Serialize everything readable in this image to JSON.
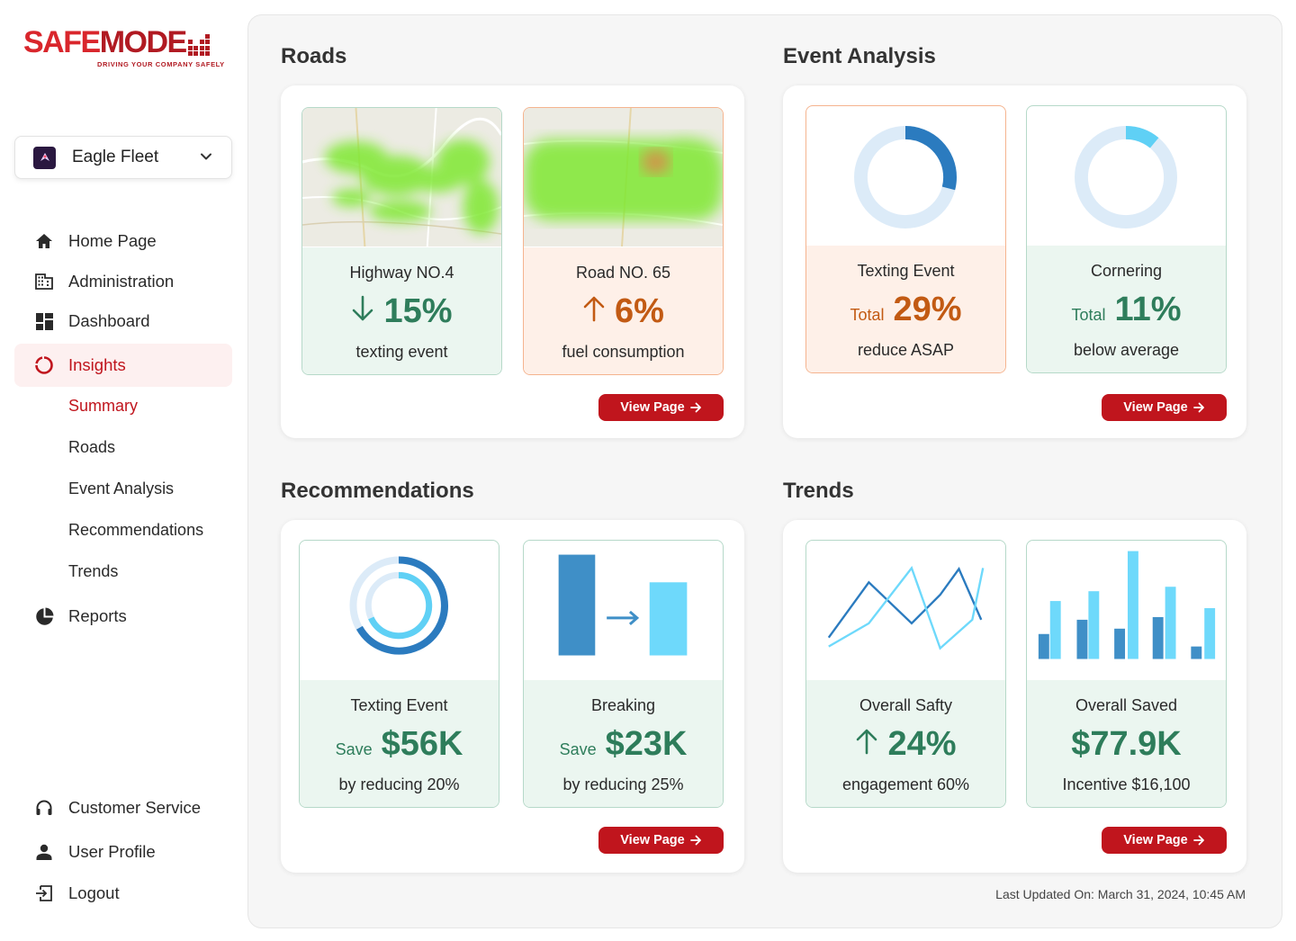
{
  "brand": {
    "name_safe": "SAFE",
    "name_mode": "MODE",
    "tagline": "DRIVING YOUR COMPANY SAFELY"
  },
  "fleet": {
    "name": "Eagle Fleet"
  },
  "nav": {
    "home": "Home Page",
    "administration": "Administration",
    "dashboard": "Dashboard",
    "insights": "Insights",
    "sub": [
      "Summary",
      "Roads",
      "Event Analysis",
      "Recommendations",
      "Trends"
    ],
    "reports": "Reports",
    "customer_service": "Customer Service",
    "user_profile": "User Profile",
    "logout": "Logout"
  },
  "sections": {
    "roads": {
      "title": "Roads",
      "cards": [
        {
          "title": "Highway NO.4",
          "arrow": "down",
          "value": "15%",
          "desc": "texting event"
        },
        {
          "title": "Road NO. 65",
          "arrow": "up",
          "value": "6%",
          "desc": "fuel consumption"
        }
      ],
      "button": "View Page"
    },
    "event_analysis": {
      "title": "Event Analysis",
      "cards": [
        {
          "title": "Texting Event",
          "prefix": "Total",
          "value": "29%",
          "desc": "reduce ASAP",
          "percent": 0.29
        },
        {
          "title": "Cornering",
          "prefix": "Total",
          "value": "11%",
          "desc": "below average",
          "percent": 0.11
        }
      ],
      "button": "View Page"
    },
    "recommendations": {
      "title": "Recommendations",
      "cards": [
        {
          "title": "Texting Event",
          "prefix": "Save",
          "value": "$56K",
          "desc": "by reducing 20%"
        },
        {
          "title": "Breaking",
          "prefix": "Save",
          "value": "$23K",
          "desc": "by reducing 25%"
        }
      ],
      "button": "View Page"
    },
    "trends": {
      "title": "Trends",
      "cards": [
        {
          "title": "Overall Safty",
          "arrow": "up",
          "value": "24%",
          "desc": "engagement 60%"
        },
        {
          "title": "Overall Saved",
          "value": "$77.9K",
          "desc": "Incentive $16,100"
        }
      ],
      "button": "View Page"
    }
  },
  "last_updated": "Last Updated On: March 31, 2024, 10:45 AM",
  "colors": {
    "brand_red": "#c0151d",
    "green_text": "#2e7d5b",
    "orange_text": "#c25a13",
    "donut_dark": "#2b7bbf",
    "donut_light": "#5fd0f5"
  }
}
